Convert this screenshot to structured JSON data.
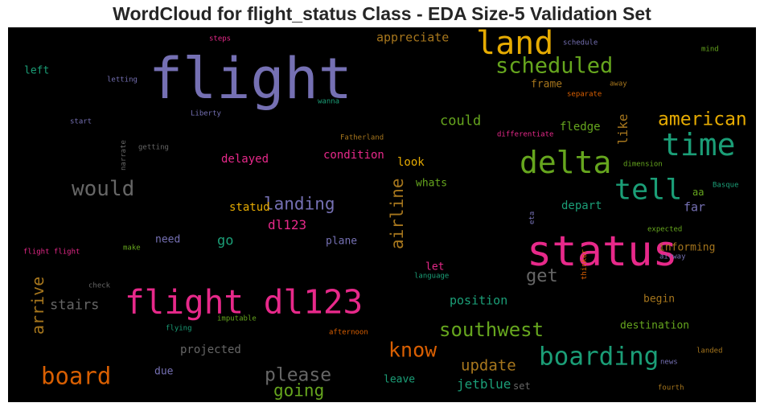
{
  "chart_data": {
    "type": "wordcloud",
    "title": "WordCloud for flight_status Class - EDA Size-5 Validation Set",
    "background": "#000000",
    "words": [
      {
        "text": "flight",
        "color": "#7570b3",
        "weight": 1.0
      },
      {
        "text": "status",
        "color": "#e7298a",
        "weight": 0.75
      },
      {
        "text": "flight dl123",
        "color": "#e7298a",
        "weight": 0.62
      },
      {
        "text": "land",
        "color": "#e6ab02",
        "weight": 0.6
      },
      {
        "text": "delta",
        "color": "#66a61e",
        "weight": 0.55
      },
      {
        "text": "time",
        "color": "#1b9e77",
        "weight": 0.55
      },
      {
        "text": "tell",
        "color": "#1b9e77",
        "weight": 0.48
      },
      {
        "text": "boarding",
        "color": "#1b9e77",
        "weight": 0.45
      },
      {
        "text": "board",
        "color": "#d95f02",
        "weight": 0.42
      },
      {
        "text": "scheduled",
        "color": "#66a61e",
        "weight": 0.4
      },
      {
        "text": "would",
        "color": "#666666",
        "weight": 0.38
      },
      {
        "text": "know",
        "color": "#d95f02",
        "weight": 0.35
      },
      {
        "text": "southwest",
        "color": "#66a61e",
        "weight": 0.35
      },
      {
        "text": "american",
        "color": "#e6ab02",
        "weight": 0.33
      },
      {
        "text": "please",
        "color": "#666666",
        "weight": 0.33
      },
      {
        "text": "airline",
        "color": "#a6761d",
        "weight": 0.32
      },
      {
        "text": "arrive",
        "color": "#a6761d",
        "weight": 0.3
      },
      {
        "text": "get",
        "color": "#666666",
        "weight": 0.3
      },
      {
        "text": "landing",
        "color": "#7570b3",
        "weight": 0.3
      },
      {
        "text": "going",
        "color": "#66a61e",
        "weight": 0.3
      },
      {
        "text": "update",
        "color": "#a6761d",
        "weight": 0.28
      },
      {
        "text": "stairs",
        "color": "#666666",
        "weight": 0.25
      },
      {
        "text": "could",
        "color": "#66a61e",
        "weight": 0.25
      },
      {
        "text": "like",
        "color": "#a6761d",
        "weight": 0.25
      },
      {
        "text": "jetblue",
        "color": "#1b9e77",
        "weight": 0.25
      },
      {
        "text": "appreciate",
        "color": "#a6761d",
        "weight": 0.22
      },
      {
        "text": "dl123",
        "color": "#e7298a",
        "weight": 0.22
      },
      {
        "text": "go",
        "color": "#1b9e77",
        "weight": 0.22
      },
      {
        "text": "position",
        "color": "#1b9e77",
        "weight": 0.22
      },
      {
        "text": "projected",
        "color": "#666666",
        "weight": 0.2
      },
      {
        "text": "statud",
        "color": "#e6ab02",
        "weight": 0.2
      },
      {
        "text": "fledge",
        "color": "#66a61e",
        "weight": 0.2
      },
      {
        "text": "delayed",
        "color": "#e7298a",
        "weight": 0.2
      },
      {
        "text": "condition",
        "color": "#e7298a",
        "weight": 0.2
      },
      {
        "text": "look",
        "color": "#e6ab02",
        "weight": 0.2
      },
      {
        "text": "far",
        "color": "#7570b3",
        "weight": 0.2
      },
      {
        "text": "depart",
        "color": "#1b9e77",
        "weight": 0.18
      },
      {
        "text": "whats",
        "color": "#66a61e",
        "weight": 0.18
      },
      {
        "text": "informing",
        "color": "#a6761d",
        "weight": 0.18
      },
      {
        "text": "begin",
        "color": "#a6761d",
        "weight": 0.18
      },
      {
        "text": "destination",
        "color": "#66a61e",
        "weight": 0.18
      },
      {
        "text": "leave",
        "color": "#1b9e77",
        "weight": 0.18
      },
      {
        "text": "due",
        "color": "#7570b3",
        "weight": 0.18
      },
      {
        "text": "need",
        "color": "#7570b3",
        "weight": 0.18
      },
      {
        "text": "plane",
        "color": "#7570b3",
        "weight": 0.18
      },
      {
        "text": "let",
        "color": "#e7298a",
        "weight": 0.18
      },
      {
        "text": "frame",
        "color": "#a6761d",
        "weight": 0.16
      },
      {
        "text": "left",
        "color": "#1b9e77",
        "weight": 0.16
      },
      {
        "text": "aa",
        "color": "#66a61e",
        "weight": 0.15
      },
      {
        "text": "set",
        "color": "#666666",
        "weight": 0.15
      },
      {
        "text": "steps",
        "color": "#e7298a",
        "weight": 0.1
      },
      {
        "text": "schedule",
        "color": "#7570b3",
        "weight": 0.1
      },
      {
        "text": "mind",
        "color": "#66a61e",
        "weight": 0.1
      },
      {
        "text": "letting",
        "color": "#7570b3",
        "weight": 0.1
      },
      {
        "text": "away",
        "color": "#a6761d",
        "weight": 0.1
      },
      {
        "text": "separate",
        "color": "#d95f02",
        "weight": 0.1
      },
      {
        "text": "wanna",
        "color": "#1b9e77",
        "weight": 0.1
      },
      {
        "text": "Liberty",
        "color": "#7570b3",
        "weight": 0.1
      },
      {
        "text": "start",
        "color": "#7570b3",
        "weight": 0.1
      },
      {
        "text": "Fatherland",
        "color": "#a6761d",
        "weight": 0.1
      },
      {
        "text": "differentiate",
        "color": "#e7298a",
        "weight": 0.1
      },
      {
        "text": "getting",
        "color": "#666666",
        "weight": 0.1
      },
      {
        "text": "narrate",
        "color": "#666666",
        "weight": 0.1
      },
      {
        "text": "dimension",
        "color": "#66a61e",
        "weight": 0.1
      },
      {
        "text": "Basque",
        "color": "#1b9e77",
        "weight": 0.1
      },
      {
        "text": "expected",
        "color": "#66a61e",
        "weight": 0.1
      },
      {
        "text": "eta",
        "color": "#7570b3",
        "weight": 0.1
      },
      {
        "text": "airway",
        "color": "#7570b3",
        "weight": 0.1
      },
      {
        "text": "flight flight",
        "color": "#e7298a",
        "weight": 0.1
      },
      {
        "text": "make",
        "color": "#66a61e",
        "weight": 0.1
      },
      {
        "text": "language",
        "color": "#1b9e77",
        "weight": 0.1
      },
      {
        "text": "check",
        "color": "#666666",
        "weight": 0.1
      },
      {
        "text": "thinker",
        "color": "#d95f02",
        "weight": 0.1
      },
      {
        "text": "imputable",
        "color": "#66a61e",
        "weight": 0.1
      },
      {
        "text": "flying",
        "color": "#1b9e77",
        "weight": 0.1
      },
      {
        "text": "afternoon",
        "color": "#d95f02",
        "weight": 0.1
      },
      {
        "text": "landed",
        "color": "#a6761d",
        "weight": 0.1
      },
      {
        "text": "news",
        "color": "#7570b3",
        "weight": 0.1
      },
      {
        "text": "fourth",
        "color": "#a6761d",
        "weight": 0.1
      }
    ]
  }
}
